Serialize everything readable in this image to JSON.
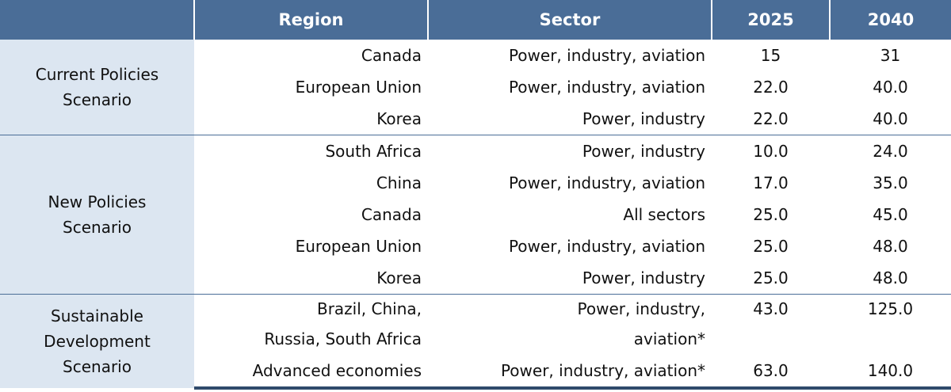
{
  "header": {
    "scenario": "",
    "region": "Region",
    "sector": "Sector",
    "year1": "2025",
    "year2": "2040"
  },
  "groups": [
    {
      "scenario_lines": [
        "Current Policies",
        "Scenario"
      ],
      "rows": [
        {
          "region": "Canada",
          "sector": "Power, industry, aviation",
          "y2025": "15",
          "y2040": "31"
        },
        {
          "region": "European Union",
          "sector": "Power, industry, aviation",
          "y2025": "22.0",
          "y2040": "40.0"
        },
        {
          "region": "Korea",
          "sector": "Power, industry",
          "y2025": "22.0",
          "y2040": "40.0"
        }
      ]
    },
    {
      "scenario_lines": [
        "New Policies",
        "Scenario"
      ],
      "rows": [
        {
          "region": "South Africa",
          "sector": "Power, industry",
          "y2025": "10.0",
          "y2040": "24.0"
        },
        {
          "region": "China",
          "sector": "Power, industry, aviation",
          "y2025": "17.0",
          "y2040": "35.0"
        },
        {
          "region": "Canada",
          "sector": "All sectors",
          "y2025": "25.0",
          "y2040": "45.0"
        },
        {
          "region": "European Union",
          "sector": "Power, industry, aviation",
          "y2025": "25.0",
          "y2040": "48.0"
        },
        {
          "region": "Korea",
          "sector": "Power, industry",
          "y2025": "25.0",
          "y2040": "48.0"
        }
      ]
    },
    {
      "scenario_lines": [
        "Sustainable",
        "Development",
        "Scenario"
      ],
      "rows": [
        {
          "region": "Brazil, China,",
          "sector": "Power, industry,",
          "y2025": "43.0",
          "y2040": "125.0"
        },
        {
          "region": "Russia, South Africa",
          "sector": "aviation*",
          "y2025": "",
          "y2040": ""
        },
        {
          "region": "Advanced economies",
          "sector": "Power, industry, aviation*",
          "y2025": "63.0",
          "y2040": "140.0"
        }
      ]
    }
  ]
}
